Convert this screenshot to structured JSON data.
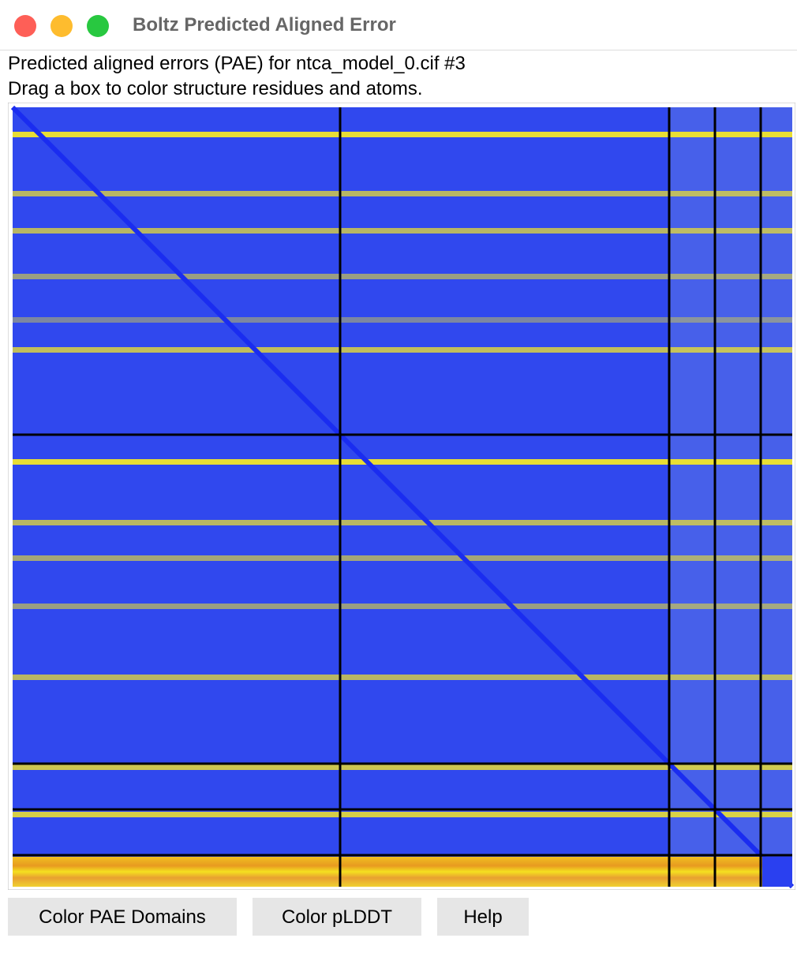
{
  "window": {
    "title": "Boltz Predicted Aligned Error"
  },
  "info": {
    "line1": "Predicted aligned errors (PAE) for ntca_model_0.cif #3",
    "line2": "Drag a box to color structure residues and atoms."
  },
  "buttons": [
    "Color PAE Domains",
    "Color pLDDT",
    "Help"
  ]
}
